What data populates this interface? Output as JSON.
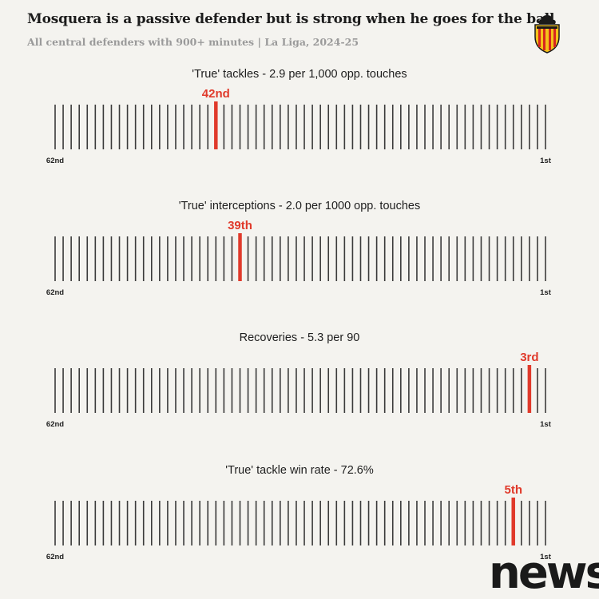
{
  "header": {
    "title": "Mosquera is a passive defender but is strong when he goes for the ball",
    "subtitle": "All central defenders with 900+ minutes | La Liga, 2024-25"
  },
  "crest": {
    "icon": "valencia-cf-crest-icon"
  },
  "watermark": {
    "text": "news"
  },
  "colors": {
    "tick": "#3a3a3a",
    "highlight": "#e03a2b",
    "background": "#f4f3ef"
  },
  "chart_data": [
    {
      "type": "rank-strip",
      "title": "'True' tackles - 2.9 per 1,000 opp. touches",
      "total": 62,
      "rank": 42,
      "rank_label": "42nd",
      "left_label": "62nd",
      "right_label": "1st"
    },
    {
      "type": "rank-strip",
      "title": "'True' interceptions - 2.0 per 1000 opp. touches",
      "total": 62,
      "rank": 39,
      "rank_label": "39th",
      "left_label": "62nd",
      "right_label": "1st"
    },
    {
      "type": "rank-strip",
      "title": "Recoveries - 5.3 per 90",
      "total": 62,
      "rank": 3,
      "rank_label": "3rd",
      "left_label": "62nd",
      "right_label": "1st"
    },
    {
      "type": "rank-strip",
      "title": "'True' tackle win rate - 72.6%",
      "total": 62,
      "rank": 5,
      "rank_label": "5th",
      "left_label": "62nd",
      "right_label": "1st"
    }
  ]
}
